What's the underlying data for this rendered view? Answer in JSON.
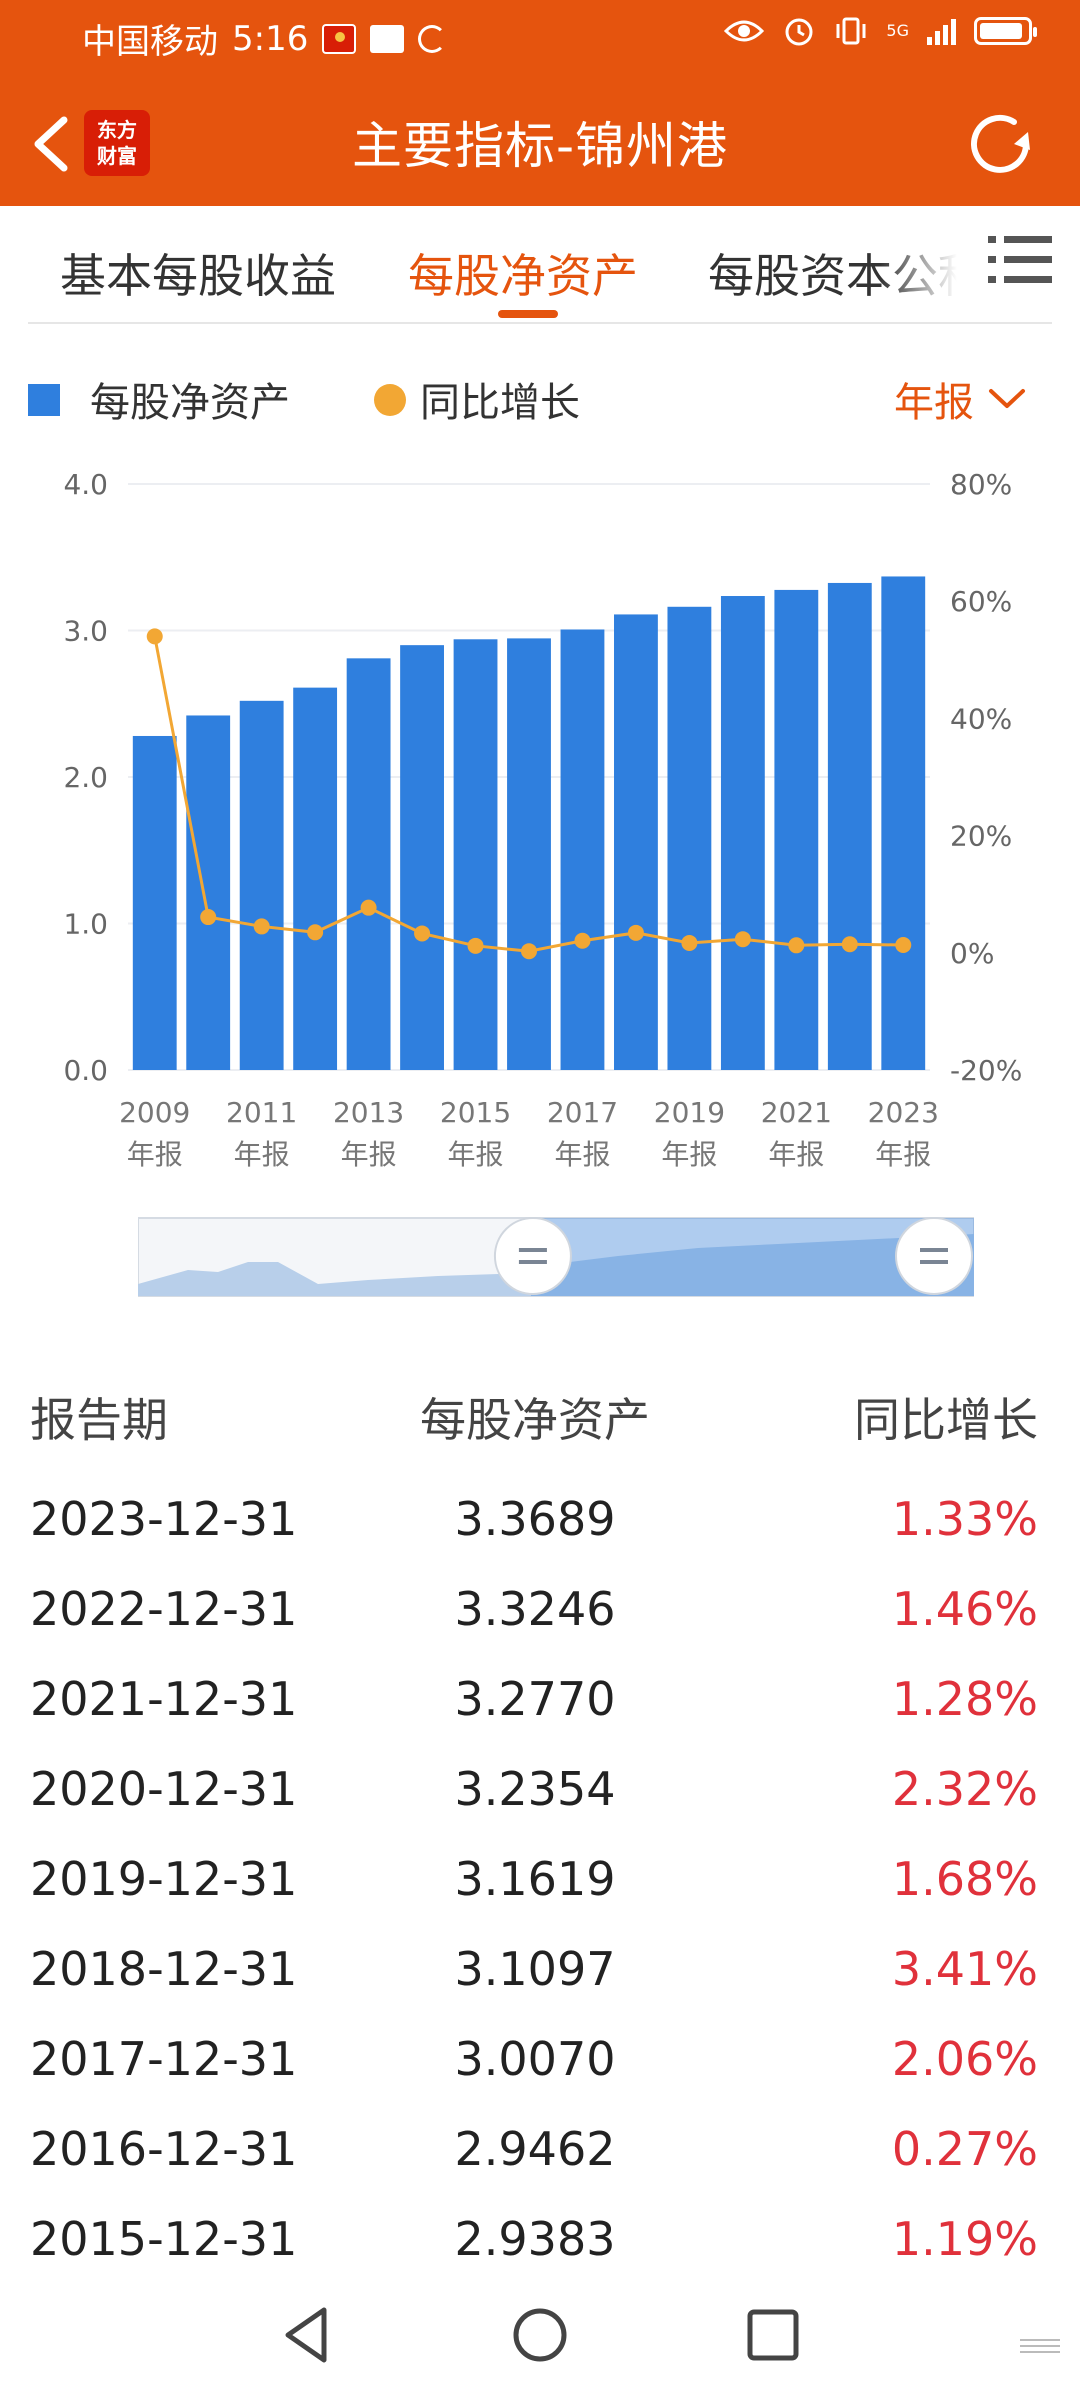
{
  "status": {
    "carrier": "中国移动",
    "time": "5:16",
    "network": "5G"
  },
  "nav": {
    "title": "主要指标-锦州港",
    "logo_line1": "东方",
    "logo_line2": "财富"
  },
  "tabs": [
    {
      "label": "基本每股收益",
      "active": false
    },
    {
      "label": "每股净资产",
      "active": true
    },
    {
      "label": "每股资本公积",
      "active": false
    }
  ],
  "legend": {
    "bar_label": "每股净资产",
    "line_label": "同比增长",
    "period": "年报"
  },
  "colors": {
    "brand": "#e5540e",
    "bar": "#2f7fde",
    "line": "#f2a734",
    "positive": "#e0313b"
  },
  "chart_data": {
    "type": "bar",
    "categories": [
      "2009",
      "2010",
      "2011",
      "2012",
      "2013",
      "2014",
      "2015",
      "2016",
      "2017",
      "2018",
      "2019",
      "2020",
      "2021",
      "2022",
      "2023"
    ],
    "x_tick_labels": [
      {
        "year": "2009",
        "suffix": "年报"
      },
      {
        "year": "2011",
        "suffix": "年报"
      },
      {
        "year": "2013",
        "suffix": "年报"
      },
      {
        "year": "2015",
        "suffix": "年报"
      },
      {
        "year": "2017",
        "suffix": "年报"
      },
      {
        "year": "2019",
        "suffix": "年报"
      },
      {
        "year": "2021",
        "suffix": "年报"
      },
      {
        "year": "2023",
        "suffix": "年报"
      }
    ],
    "series": [
      {
        "name": "每股净资产",
        "type": "bar",
        "axis": "left",
        "values": [
          2.28,
          2.42,
          2.52,
          2.61,
          2.81,
          2.9,
          2.94,
          2.9462,
          3.007,
          3.1097,
          3.1619,
          3.2354,
          3.277,
          3.3246,
          3.3689
        ]
      },
      {
        "name": "同比增长",
        "type": "line",
        "axis": "right",
        "values": [
          54.0,
          6.1,
          4.5,
          3.5,
          7.7,
          3.3,
          1.19,
          0.27,
          2.06,
          3.41,
          1.68,
          2.32,
          1.28,
          1.46,
          1.33
        ]
      }
    ],
    "y_left": {
      "ticks": [
        "0.0",
        "1.0",
        "2.0",
        "3.0",
        "4.0"
      ],
      "range": [
        0,
        4
      ]
    },
    "y_right": {
      "ticks": [
        "-20%",
        "0%",
        "20%",
        "40%",
        "60%",
        "80%"
      ],
      "range": [
        -20,
        80
      ]
    },
    "grid": true,
    "legend_position": "top-left"
  },
  "zoom": {
    "start_fraction": 0.47,
    "end_fraction": 1.0
  },
  "table": {
    "headers": [
      "报告期",
      "每股净资产",
      "同比增长"
    ],
    "rows": [
      [
        "2023-12-31",
        "3.3689",
        "1.33%"
      ],
      [
        "2022-12-31",
        "3.3246",
        "1.46%"
      ],
      [
        "2021-12-31",
        "3.2770",
        "1.28%"
      ],
      [
        "2020-12-31",
        "3.2354",
        "2.32%"
      ],
      [
        "2019-12-31",
        "3.1619",
        "1.68%"
      ],
      [
        "2018-12-31",
        "3.1097",
        "3.41%"
      ],
      [
        "2017-12-31",
        "3.0070",
        "2.06%"
      ],
      [
        "2016-12-31",
        "2.9462",
        "0.27%"
      ],
      [
        "2015-12-31",
        "2.9383",
        "1.19%"
      ]
    ]
  },
  "icons": {
    "back": "back-arrow-icon",
    "refresh": "refresh-icon",
    "menu": "menu-icon",
    "nav_back": "triangle-back-icon",
    "nav_home": "circle-home-icon",
    "nav_recent": "square-recent-icon"
  }
}
